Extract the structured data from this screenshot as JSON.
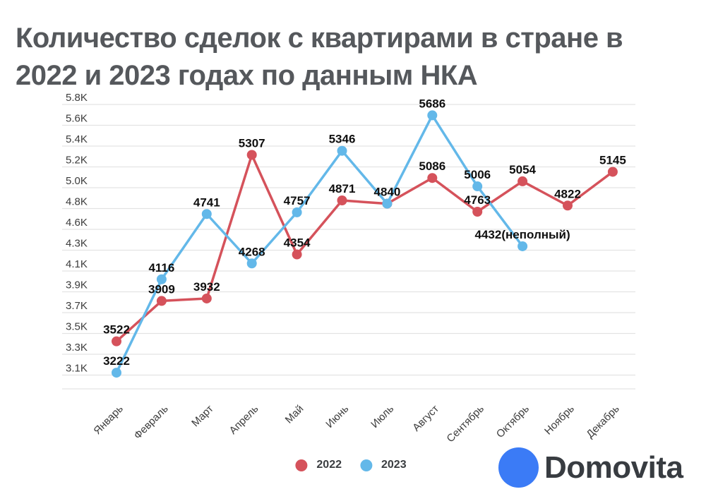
{
  "title_lines": [
    "Количество сделок с квартирами в стране в",
    "2022 и 2023 годах по данным НКА"
  ],
  "chart_data": {
    "type": "line",
    "title": "Количество сделок с квартирами в стране в 2022 и 2023 годах по данным НКА",
    "categories": [
      "Январь",
      "Февраль",
      "Март",
      "Апрель",
      "Май",
      "Июнь",
      "Июль",
      "Август",
      "Сентябрь",
      "Октябрь",
      "Ноябрь",
      "Декабрь"
    ],
    "y_tick_labels": [
      "5.8K",
      "5.6K",
      "5.4K",
      "5.2K",
      "5.0K",
      "4.8K",
      "4.6K",
      "4.3K",
      "4.1K",
      "3.9K",
      "3.7K",
      "3.5K",
      "3.3K",
      "3.1K"
    ],
    "ylim": [
      3100,
      5800
    ],
    "grid": true,
    "legend_position": "bottom",
    "series": [
      {
        "name": "2022",
        "color": "#d5525b",
        "values": [
          3522,
          3909,
          3932,
          5307,
          4354,
          4871,
          4840,
          5086,
          4763,
          5054,
          4822,
          5145
        ],
        "point_labels": [
          "3522",
          "3909",
          "3932",
          "5307",
          "4354",
          "4871",
          "",
          "5086",
          "4763",
          "5054",
          "4822",
          "5145"
        ]
      },
      {
        "name": "2023",
        "color": "#63b8e9",
        "values": [
          3222,
          4116,
          4741,
          4268,
          4757,
          5346,
          4840,
          5686,
          5006,
          4432
        ],
        "point_labels": [
          "3222",
          "4116",
          "4741",
          "4268",
          "4757",
          "5346",
          "4840",
          "5686",
          "5006",
          "4432(неполный)"
        ]
      }
    ],
    "colors": {
      "grid": "#e3e3e3",
      "tick_text": "#3c3c3c",
      "point_label_text": "#0f0f0f"
    }
  },
  "logo": {
    "text": "Domovita",
    "mark_color": "#3b7bf6"
  }
}
